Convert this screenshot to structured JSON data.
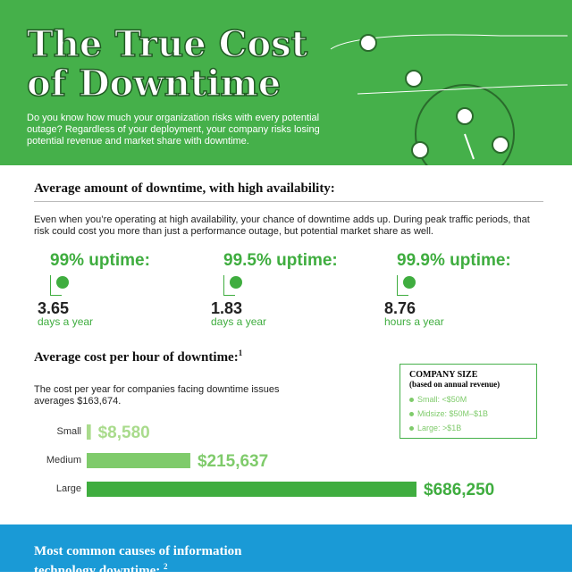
{
  "header": {
    "title_lines": [
      "The True Cost",
      "of Downtime"
    ],
    "intro": "Do you know how much your organization risks with every potential outage? Regardless of your deployment, your company risks losing potential revenue and market share with downtime."
  },
  "availability": {
    "heading": "Average amount of downtime, with high availability:",
    "text": "Even when you’re operating at high availability, your chance of downtime adds up. During peak traffic periods, that risk could cost you more than just a performance outage, but potential market share as well.",
    "stats": [
      {
        "label": "99% uptime:",
        "value": "3.65",
        "unit": "days a year"
      },
      {
        "label": "99.5% uptime:",
        "value": "1.83",
        "unit": "days a year"
      },
      {
        "label": "99.9% uptime:",
        "value": "8.76",
        "unit": "hours a year"
      }
    ]
  },
  "cost": {
    "heading": "Average cost per hour of downtime:",
    "note": "1",
    "text": "The cost per year for companies facing downtime issues averages $163,674.",
    "legend": {
      "title": "COMPANY SIZE",
      "subtitle": "(based on annual revenue)",
      "items": [
        "Small: <$50M",
        "Midsize: $50M–$1B",
        "Large: >$1B"
      ]
    }
  },
  "chart_data": {
    "type": "bar",
    "orientation": "horizontal",
    "categories": [
      "Small",
      "Medium",
      "Large"
    ],
    "values": [
      8580,
      215637,
      686250
    ],
    "value_labels": [
      "$8,580",
      "$215,637",
      "$686,250"
    ],
    "colors": [
      "#a9db8c",
      "#7fcb6b",
      "#3fad3f"
    ]
  },
  "causes": {
    "heading_lines": [
      "Most common causes of information",
      "technology downtime:"
    ],
    "note": "2"
  }
}
